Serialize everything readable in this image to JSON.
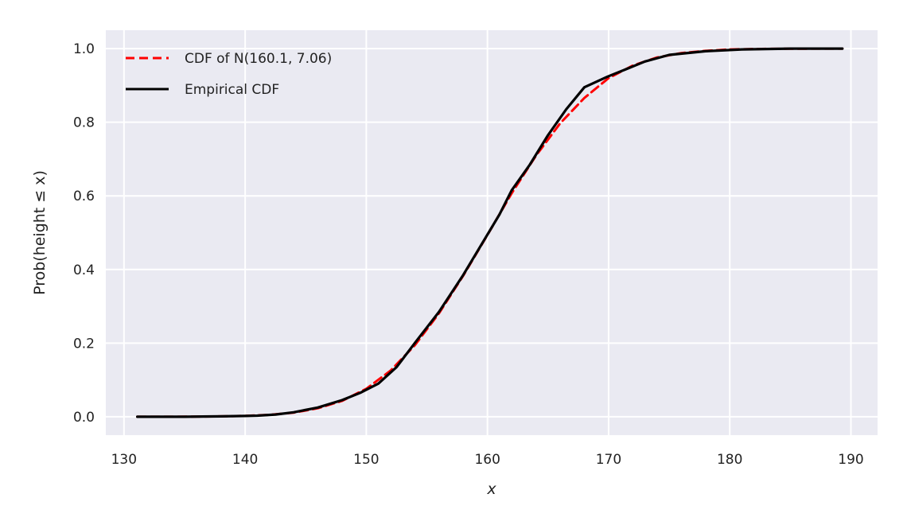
{
  "chart_data": {
    "type": "line",
    "title": "",
    "xlabel": "x",
    "ylabel": "Prob(height ≤ x)",
    "xlim": [
      128.5,
      192.2
    ],
    "ylim": [
      -0.05,
      1.05
    ],
    "xticks": [
      130,
      140,
      150,
      160,
      170,
      180,
      190
    ],
    "yticks": [
      0.0,
      0.2,
      0.4,
      0.6,
      0.8,
      1.0
    ],
    "xtick_labels": [
      "130",
      "140",
      "150",
      "160",
      "170",
      "180",
      "190"
    ],
    "ytick_labels": [
      "0.0",
      "0.2",
      "0.4",
      "0.6",
      "0.8",
      "1.0"
    ],
    "grid": true,
    "legend_position": "top-left",
    "colors": {
      "background": "#eaeaf2",
      "grid": "#ffffff",
      "normal_cdf": "#ff0000",
      "empirical_cdf": "#000000"
    },
    "series": [
      {
        "name": "CDF of N(160.1, 7.06)",
        "style": "dashed",
        "x": [
          131.1,
          135,
          138,
          140,
          142,
          144,
          146,
          148,
          150,
          152,
          154,
          156,
          158,
          160,
          162,
          164,
          166,
          168,
          170,
          172,
          174,
          176,
          178,
          180,
          183,
          186,
          189.3
        ],
        "y": [
          0.0,
          0.0001,
          0.0009,
          0.0022,
          0.005,
          0.011,
          0.023,
          0.043,
          0.076,
          0.125,
          0.194,
          0.281,
          0.383,
          0.494,
          0.607,
          0.709,
          0.797,
          0.866,
          0.92,
          0.954,
          0.976,
          0.988,
          0.994,
          0.998,
          0.9995,
          0.9999,
          1.0
        ]
      },
      {
        "name": "Empirical CDF",
        "style": "solid",
        "x": [
          131.1,
          135,
          138,
          140,
          141,
          142.5,
          144,
          146,
          148,
          149.5,
          151,
          152.5,
          154,
          156,
          158,
          160,
          161,
          162,
          163.5,
          165,
          166.5,
          168,
          170,
          171.5,
          173,
          175,
          178,
          181,
          185,
          189.3
        ],
        "y": [
          0.0,
          0.0,
          0.001,
          0.002,
          0.003,
          0.006,
          0.012,
          0.025,
          0.045,
          0.065,
          0.09,
          0.135,
          0.2,
          0.285,
          0.385,
          0.495,
          0.55,
          0.615,
          0.685,
          0.765,
          0.835,
          0.895,
          0.925,
          0.945,
          0.965,
          0.983,
          0.993,
          0.998,
          1.0,
          1.0
        ]
      }
    ]
  }
}
